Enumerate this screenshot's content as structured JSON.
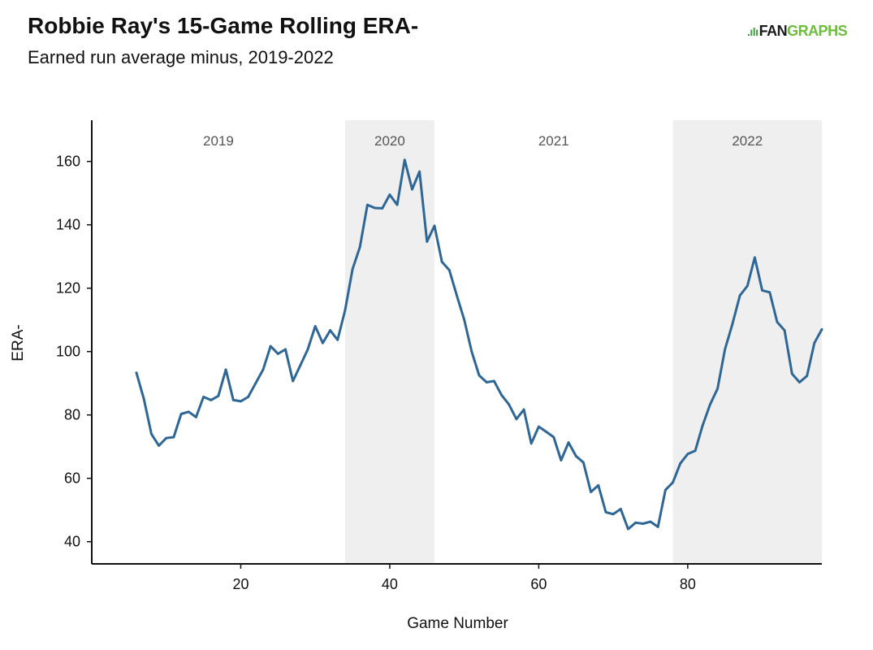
{
  "header": {
    "title": "Robbie Ray's 15-Game Rolling ERA-",
    "subtitle": "Earned run average minus, 2019-2022",
    "logo_mark": ".ılı",
    "logo_text_fan": "FAN",
    "logo_text_graphs": "GRAPHS"
  },
  "colors": {
    "line": "#2e6796",
    "band": "#efefef",
    "axis": "#111111",
    "season_label": "#555555",
    "logo_fan": "#1a1a1a",
    "logo_graphs": "#6bbd3b"
  },
  "chart_data": {
    "type": "line",
    "title": "Robbie Ray's 15-Game Rolling ERA-",
    "subtitle": "Earned run average minus, 2019-2022",
    "xlabel": "Game Number",
    "ylabel": "ERA-",
    "xlim": [
      0,
      98
    ],
    "ylim": [
      33,
      173
    ],
    "xticks": [
      20,
      40,
      60,
      80
    ],
    "yticks": [
      40,
      60,
      80,
      100,
      120,
      140,
      160
    ],
    "grid": false,
    "seasons": [
      {
        "label": "2019",
        "start": 0,
        "end": 34,
        "shaded": false
      },
      {
        "label": "2020",
        "start": 34,
        "end": 46,
        "shaded": true
      },
      {
        "label": "2021",
        "start": 46,
        "end": 78,
        "shaded": false
      },
      {
        "label": "2022",
        "start": 78,
        "end": 98,
        "shaded": true
      }
    ],
    "series": [
      {
        "x": [
          6,
          7,
          8,
          9,
          10,
          11,
          12,
          13,
          14,
          15,
          16,
          17,
          18,
          19,
          20,
          21,
          22,
          23,
          24,
          25,
          26,
          27,
          28,
          29,
          30,
          31,
          32,
          33,
          34,
          35,
          36,
          37,
          38,
          39,
          40,
          41,
          42,
          43,
          44,
          45,
          46,
          47,
          48,
          49,
          50,
          51,
          52,
          53,
          54,
          55,
          56,
          57,
          58,
          59,
          60,
          61,
          62,
          63,
          64,
          65,
          66,
          67,
          68,
          69,
          70,
          71,
          72,
          73,
          74,
          75,
          76,
          77,
          78,
          79,
          80,
          81,
          82,
          83,
          84,
          85,
          86,
          87,
          88,
          89,
          90,
          91,
          92,
          93,
          94,
          95,
          96,
          97,
          98
        ],
        "y": [
          93.3,
          85,
          74,
          70.3,
          72.7,
          73,
          80.3,
          81,
          79.3,
          85.7,
          84.7,
          86,
          94.3,
          84.7,
          84.3,
          85.7,
          90,
          94.3,
          101.7,
          99.3,
          100.7,
          90.7,
          95.7,
          100.7,
          108,
          102.7,
          106.7,
          103.7,
          113,
          126,
          133,
          146.3,
          145.3,
          145.2,
          149.5,
          146.3,
          160.5,
          151.2,
          156.8,
          134.7,
          139.7,
          128.3,
          125.7,
          117.7,
          110,
          100,
          92.5,
          90.3,
          90.7,
          86.3,
          83.3,
          78.7,
          81.7,
          71,
          76.3,
          74.7,
          73,
          65.7,
          71.3,
          67,
          65,
          55.7,
          57.8,
          49.3,
          48.7,
          50.3,
          44,
          46,
          45.7,
          46.3,
          44.7,
          56.3,
          58.7,
          64.7,
          67.7,
          68.7,
          76.7,
          83.3,
          88.3,
          100.7,
          108.7,
          117.7,
          120.7,
          129.7,
          119.3,
          118.7,
          109.3,
          106.7,
          93,
          90.3,
          92.3,
          102.7,
          107
        ]
      }
    ]
  }
}
